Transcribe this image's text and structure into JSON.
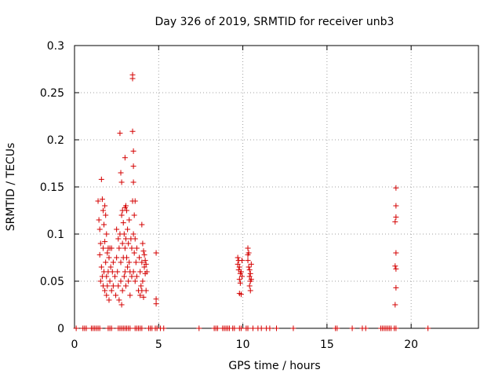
{
  "chart_data": {
    "type": "scatter",
    "title": "Day 326 of 2019, SRMTID for receiver unb3",
    "xlabel": "GPS time / hours",
    "ylabel": "SRMTID / TECUs",
    "xlim": [
      0,
      24
    ],
    "ylim": [
      0,
      0.3
    ],
    "xticks": [
      0,
      5,
      10,
      15,
      20
    ],
    "yticks": [
      0,
      0.05,
      0.1,
      0.15,
      0.2,
      0.25,
      0.3
    ],
    "xtick_labels": [
      "0",
      "5",
      "10",
      "15",
      "20"
    ],
    "ytick_labels": [
      "0",
      "0.05",
      "0.1",
      "0.15",
      "0.2",
      "0.25",
      "0.3"
    ],
    "grid": true,
    "marker": "+",
    "color": "#d40000",
    "series": [
      {
        "name": "SRMTID",
        "points": [
          [
            1.4,
            0.135
          ],
          [
            1.45,
            0.115
          ],
          [
            1.5,
            0.105
          ],
          [
            1.5,
            0.078
          ],
          [
            1.55,
            0.09
          ],
          [
            1.55,
            0.05
          ],
          [
            1.6,
            0.158
          ],
          [
            1.6,
            0.065
          ],
          [
            1.65,
            0.137
          ],
          [
            1.65,
            0.055
          ],
          [
            1.7,
            0.125
          ],
          [
            1.7,
            0.085
          ],
          [
            1.7,
            0.045
          ],
          [
            1.75,
            0.11
          ],
          [
            1.75,
            0.06
          ],
          [
            1.8,
            0.13
          ],
          [
            1.8,
            0.092
          ],
          [
            1.8,
            0.04
          ],
          [
            1.85,
            0.12
          ],
          [
            1.85,
            0.07
          ],
          [
            1.9,
            0.1
          ],
          [
            1.9,
            0.055
          ],
          [
            1.9,
            0.035
          ],
          [
            1.95,
            0.08
          ],
          [
            1.95,
            0.045
          ],
          [
            2.0,
            0.085
          ],
          [
            2.0,
            0.06
          ],
          [
            2.05,
            0.075
          ],
          [
            2.05,
            0.03
          ],
          [
            2.1,
            0.085
          ],
          [
            2.1,
            0.05
          ],
          [
            2.15,
            0.065
          ],
          [
            2.2,
            0.085
          ],
          [
            2.2,
            0.04
          ],
          [
            2.25,
            0.06
          ],
          [
            2.3,
            0.07
          ],
          [
            2.3,
            0.045
          ],
          [
            2.4,
            0.055
          ],
          [
            2.45,
            0.035
          ],
          [
            2.5,
            0.105
          ],
          [
            2.5,
            0.075
          ],
          [
            2.55,
            0.06
          ],
          [
            2.6,
            0.095
          ],
          [
            2.6,
            0.045
          ],
          [
            2.65,
            0.085
          ],
          [
            2.65,
            0.03
          ],
          [
            2.7,
            0.207
          ],
          [
            2.7,
            0.1
          ],
          [
            2.75,
            0.165
          ],
          [
            2.75,
            0.07
          ],
          [
            2.75,
            0.05
          ],
          [
            2.8,
            0.155
          ],
          [
            2.8,
            0.12
          ],
          [
            2.8,
            0.025
          ],
          [
            2.85,
            0.125
          ],
          [
            2.85,
            0.09
          ],
          [
            2.85,
            0.04
          ],
          [
            2.9,
            0.112
          ],
          [
            2.9,
            0.075
          ],
          [
            2.95,
            0.1
          ],
          [
            2.95,
            0.055
          ],
          [
            3.0,
            0.181
          ],
          [
            3.0,
            0.128
          ],
          [
            3.0,
            0.085
          ],
          [
            3.0,
            0.06
          ],
          [
            3.05,
            0.13
          ],
          [
            3.05,
            0.095
          ],
          [
            3.05,
            0.045
          ],
          [
            3.1,
            0.125
          ],
          [
            3.1,
            0.075
          ],
          [
            3.15,
            0.105
          ],
          [
            3.15,
            0.065
          ],
          [
            3.2,
            0.09
          ],
          [
            3.2,
            0.05
          ],
          [
            3.25,
            0.115
          ],
          [
            3.25,
            0.07
          ],
          [
            3.3,
            0.06
          ],
          [
            3.3,
            0.035
          ],
          [
            3.35,
            0.095
          ],
          [
            3.4,
            0.085
          ],
          [
            3.4,
            0.055
          ],
          [
            3.45,
            0.269
          ],
          [
            3.45,
            0.265
          ],
          [
            3.45,
            0.209
          ],
          [
            3.45,
            0.135
          ],
          [
            3.5,
            0.188
          ],
          [
            3.5,
            0.172
          ],
          [
            3.5,
            0.155
          ],
          [
            3.5,
            0.1
          ],
          [
            3.5,
            0.06
          ],
          [
            3.55,
            0.12
          ],
          [
            3.55,
            0.08
          ],
          [
            3.6,
            0.135
          ],
          [
            3.6,
            0.095
          ],
          [
            3.6,
            0.05
          ],
          [
            3.65,
            0.07
          ],
          [
            3.7,
            0.085
          ],
          [
            3.7,
            0.055
          ],
          [
            3.8,
            0.04
          ],
          [
            3.85,
            0.075
          ],
          [
            3.9,
            0.06
          ],
          [
            3.9,
            0.035
          ],
          [
            3.95,
            0.045
          ],
          [
            4.0,
            0.11
          ],
          [
            4.0,
            0.07
          ],
          [
            4.0,
            0.04
          ],
          [
            4.05,
            0.09
          ],
          [
            4.05,
            0.05
          ],
          [
            4.1,
            0.082
          ],
          [
            4.1,
            0.033
          ],
          [
            4.15,
            0.078
          ],
          [
            4.15,
            0.065
          ],
          [
            4.2,
            0.072
          ],
          [
            4.2,
            0.058
          ],
          [
            4.25,
            0.068
          ],
          [
            4.25,
            0.04
          ],
          [
            4.3,
            0.06
          ],
          [
            4.85,
            0.031
          ],
          [
            4.85,
            0.026
          ],
          [
            4.85,
            0.08
          ],
          [
            9.7,
            0.075
          ],
          [
            9.7,
            0.068
          ],
          [
            9.75,
            0.072
          ],
          [
            9.75,
            0.062
          ],
          [
            9.8,
            0.065
          ],
          [
            9.8,
            0.052
          ],
          [
            9.8,
            0.037
          ],
          [
            9.85,
            0.058
          ],
          [
            9.85,
            0.048
          ],
          [
            9.9,
            0.06
          ],
          [
            9.9,
            0.036
          ],
          [
            9.95,
            0.072
          ],
          [
            9.95,
            0.055
          ],
          [
            10.3,
            0.085
          ],
          [
            10.3,
            0.078
          ],
          [
            10.3,
            0.072
          ],
          [
            10.35,
            0.08
          ],
          [
            10.35,
            0.065
          ],
          [
            10.4,
            0.062
          ],
          [
            10.4,
            0.055
          ],
          [
            10.4,
            0.045
          ],
          [
            10.45,
            0.058
          ],
          [
            10.45,
            0.05
          ],
          [
            10.45,
            0.04
          ],
          [
            10.5,
            0.068
          ],
          [
            10.5,
            0.052
          ],
          [
            19.1,
            0.149
          ],
          [
            19.1,
            0.13
          ],
          [
            19.1,
            0.118
          ],
          [
            19.05,
            0.113
          ],
          [
            19.1,
            0.08
          ],
          [
            19.05,
            0.066
          ],
          [
            19.1,
            0.063
          ],
          [
            19.1,
            0.043
          ],
          [
            19.05,
            0.025
          ],
          [
            0.1,
            0
          ],
          [
            0.5,
            0
          ],
          [
            0.6,
            0
          ],
          [
            0.7,
            0
          ],
          [
            1.0,
            0
          ],
          [
            1.1,
            0
          ],
          [
            1.2,
            0
          ],
          [
            1.3,
            0
          ],
          [
            1.4,
            0
          ],
          [
            1.5,
            0
          ],
          [
            2.0,
            0
          ],
          [
            2.1,
            0
          ],
          [
            2.2,
            0
          ],
          [
            2.6,
            0
          ],
          [
            2.7,
            0
          ],
          [
            2.8,
            0
          ],
          [
            2.9,
            0
          ],
          [
            3.0,
            0
          ],
          [
            3.1,
            0
          ],
          [
            3.2,
            0
          ],
          [
            3.3,
            0
          ],
          [
            3.6,
            0
          ],
          [
            3.7,
            0
          ],
          [
            3.8,
            0
          ],
          [
            3.9,
            0
          ],
          [
            4.0,
            0
          ],
          [
            4.4,
            0
          ],
          [
            4.5,
            0
          ],
          [
            4.6,
            0
          ],
          [
            4.8,
            0
          ],
          [
            4.9,
            0
          ],
          [
            5.1,
            0
          ],
          [
            5.3,
            0
          ],
          [
            7.4,
            0
          ],
          [
            8.3,
            0
          ],
          [
            8.4,
            0
          ],
          [
            8.5,
            0
          ],
          [
            8.8,
            0
          ],
          [
            8.9,
            0
          ],
          [
            9.0,
            0
          ],
          [
            9.1,
            0
          ],
          [
            9.2,
            0
          ],
          [
            9.4,
            0
          ],
          [
            9.5,
            0
          ],
          [
            9.8,
            0
          ],
          [
            9.9,
            0
          ],
          [
            10.2,
            0
          ],
          [
            10.3,
            0
          ],
          [
            10.6,
            0
          ],
          [
            10.9,
            0
          ],
          [
            11.1,
            0
          ],
          [
            11.4,
            0
          ],
          [
            11.6,
            0
          ],
          [
            12.0,
            0
          ],
          [
            13.0,
            0
          ],
          [
            15.5,
            0
          ],
          [
            15.6,
            0
          ],
          [
            16.5,
            0
          ],
          [
            17.1,
            0
          ],
          [
            17.3,
            0
          ],
          [
            18.2,
            0
          ],
          [
            18.3,
            0
          ],
          [
            18.4,
            0
          ],
          [
            18.5,
            0
          ],
          [
            18.6,
            0
          ],
          [
            18.7,
            0
          ],
          [
            18.8,
            0
          ],
          [
            19.0,
            0
          ],
          [
            19.1,
            0
          ],
          [
            21.0,
            0
          ]
        ]
      }
    ]
  }
}
